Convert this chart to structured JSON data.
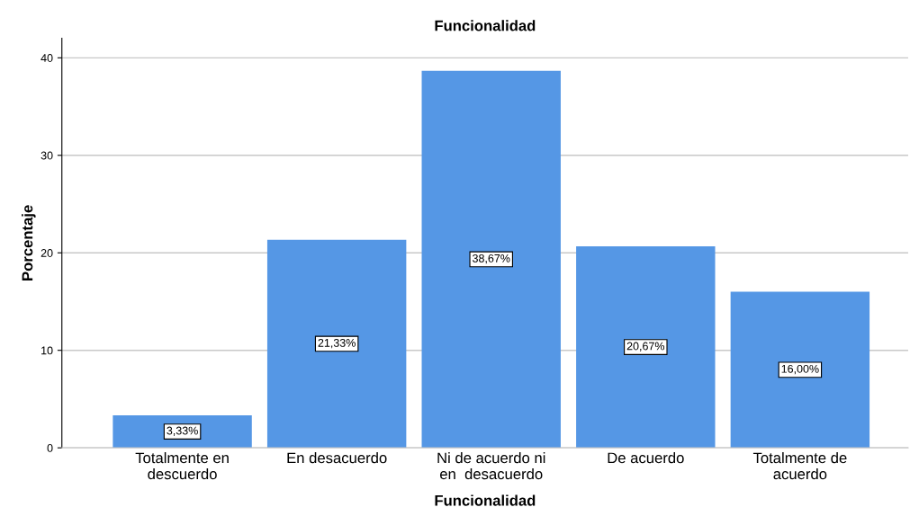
{
  "chart_data": {
    "type": "bar",
    "title": "Funcionalidad",
    "xlabel": "Funcionalidad",
    "ylabel": "Porcentaje",
    "categories": [
      "Totalmente en\ndescuerdo",
      "En desacuerdo",
      "Ni de acuerdo ni\nen  desacuerdo",
      "De acuerdo",
      "Totalmente de\nacuerdo"
    ],
    "values": [
      3.33,
      21.33,
      38.67,
      20.67,
      16.0
    ],
    "value_labels": [
      "3,33%",
      "21,33%",
      "38,67%",
      "20,67%",
      "16,00%"
    ],
    "color": "#5597e5",
    "ylim": [
      0,
      42
    ],
    "yticks": [
      0,
      10,
      20,
      30,
      40
    ],
    "grid": "y",
    "legend": false
  }
}
